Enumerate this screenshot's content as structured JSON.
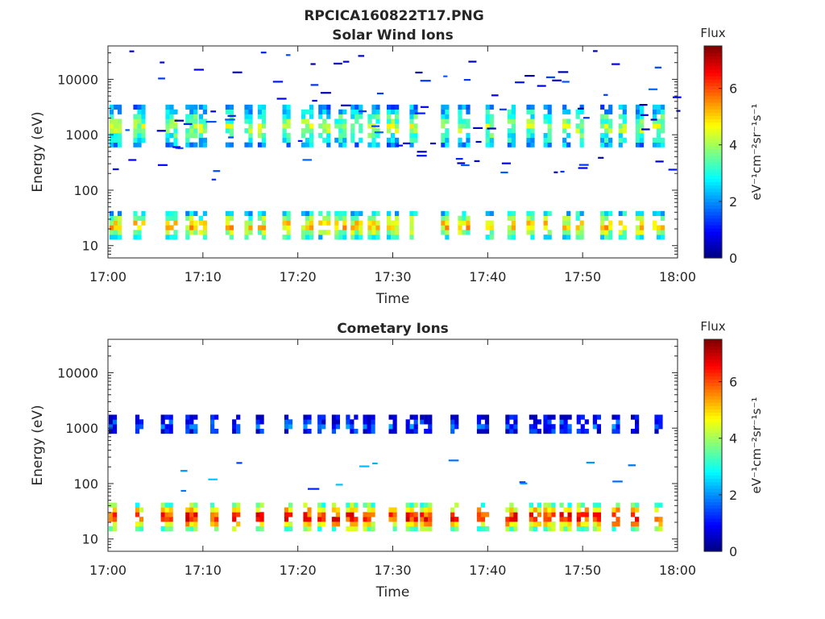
{
  "figure": {
    "title": "RPCICA160822T17.PNG"
  },
  "chart_data": [
    {
      "type": "heatmap",
      "title": "Solar Wind Ions",
      "xlabel": "Time",
      "ylabel": "Energy (eV)",
      "x_tick_labels": [
        "17:00",
        "17:10",
        "17:20",
        "17:30",
        "17:40",
        "17:50",
        "18:00"
      ],
      "x_range": [
        "17:00",
        "18:00"
      ],
      "y_scale": "log",
      "y_tick_labels": [
        "10",
        "100",
        "1000",
        "10000"
      ],
      "ylim": [
        6,
        40000
      ],
      "colorbar": {
        "label": "Flux",
        "units": "eV⁻¹cm⁻²sr⁻¹s⁻¹",
        "range": [
          0,
          7.5
        ],
        "ticks": [
          "0",
          "2",
          "4",
          "6"
        ],
        "colormap": "jet"
      },
      "burst_minutes": [
        0.8,
        3.3,
        6.7,
        8.8,
        10.0,
        12.8,
        14.8,
        16.2,
        18.8,
        21.0,
        22.8,
        24.5,
        26.2,
        28.0,
        30.0,
        32.2,
        35.5,
        37.5,
        40.2,
        42.5,
        44.5,
        46.3,
        48.3,
        49.7,
        52.5,
        54.2,
        56.0,
        58.0
      ],
      "bands": [
        {
          "name": "high-energy band",
          "energy_ev": [
            600,
            3300
          ],
          "peak_flux": 4.2
        },
        {
          "name": "low-energy band",
          "energy_ev": [
            13,
            40
          ],
          "peak_flux": 5.3
        }
      ]
    },
    {
      "type": "heatmap",
      "title": "Cometary Ions",
      "xlabel": "Time",
      "ylabel": "Energy (eV)",
      "x_tick_labels": [
        "17:00",
        "17:10",
        "17:20",
        "17:30",
        "17:40",
        "17:50",
        "18:00"
      ],
      "x_range": [
        "17:00",
        "18:00"
      ],
      "y_scale": "log",
      "y_tick_labels": [
        "10",
        "100",
        "1000",
        "10000"
      ],
      "ylim": [
        6,
        40000
      ],
      "colorbar": {
        "label": "Flux",
        "units": "eV⁻¹cm⁻²sr⁻¹s⁻¹",
        "range": [
          0,
          7.5
        ],
        "ticks": [
          "0",
          "2",
          "4",
          "6"
        ],
        "colormap": "jet"
      },
      "burst_minutes": [
        0.5,
        3.3,
        6.2,
        8.8,
        11.2,
        13.5,
        16.0,
        19.0,
        21.0,
        22.5,
        24.0,
        25.7,
        27.5,
        30.0,
        32.0,
        33.5,
        36.5,
        39.5,
        42.5,
        45.0,
        46.5,
        48.2,
        50.0,
        51.5,
        53.5,
        55.5,
        58.0
      ],
      "bands": [
        {
          "name": "~1 keV band",
          "energy_ev": [
            800,
            1500
          ],
          "peak_flux": 1.5
        },
        {
          "name": "low-energy band",
          "energy_ev": [
            14,
            45
          ],
          "peak_flux": 6.8
        }
      ]
    }
  ]
}
